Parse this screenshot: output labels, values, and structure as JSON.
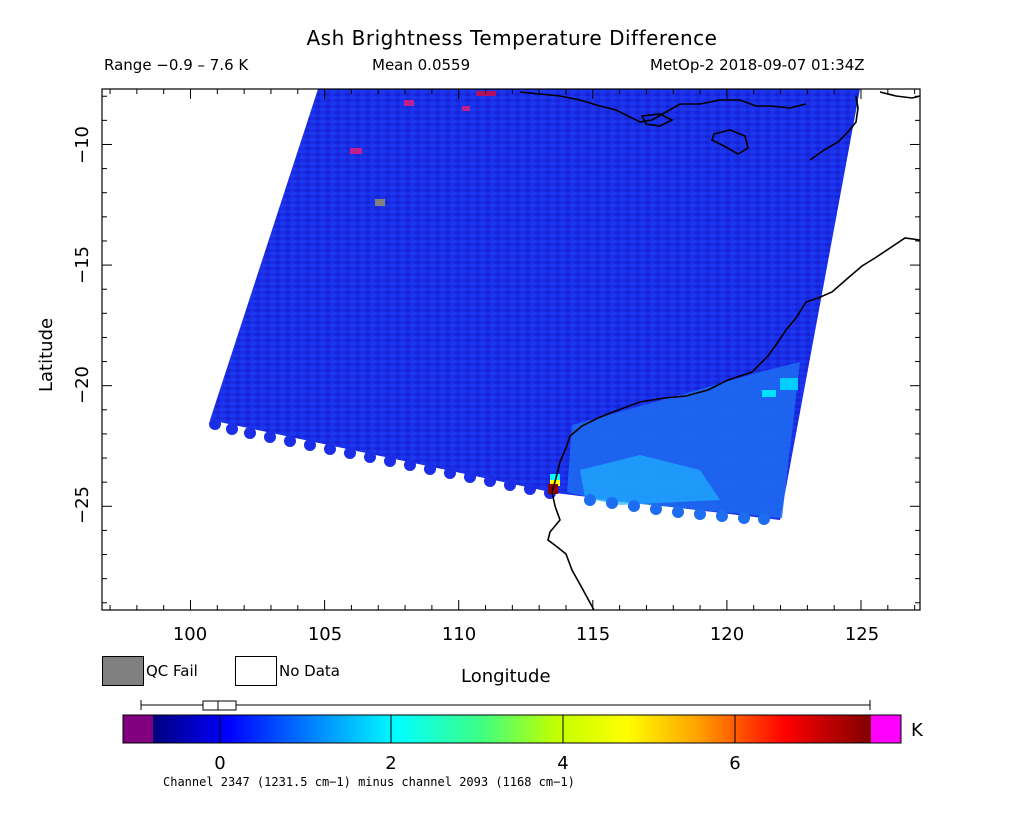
{
  "header": {
    "title": "Ash Brightness Temperature Difference",
    "range": "Range −0.9 – 7.6 K",
    "mean": "Mean 0.0559",
    "satellite_time": "MetOp-2 2018-09-07 01:34Z"
  },
  "map": {
    "xlabel": "Longitude",
    "ylabel": "Latitude",
    "x_ticks": [
      "100",
      "105",
      "110",
      "115",
      "120",
      "125"
    ],
    "y_ticks": [
      "−10",
      "−15",
      "−20",
      "−25"
    ],
    "lon_range": [
      96.7,
      127.2
    ],
    "lat_range": [
      -29.3,
      -7.7
    ]
  },
  "legend": {
    "qc_fail": "QC Fail",
    "no_data": "No Data",
    "qc_fail_color": "#808080",
    "no_data_color": "#ffffff"
  },
  "colorbar": {
    "ticks": [
      "0",
      "2",
      "4",
      "6"
    ],
    "unit": "K",
    "min": -0.9,
    "max": 7.6,
    "under_color": "#800080",
    "over_color": "#ff00ff"
  },
  "footnote": "Channel 2347 (1231.5 cm−1) minus channel 2093 (1168 cm−1)"
}
